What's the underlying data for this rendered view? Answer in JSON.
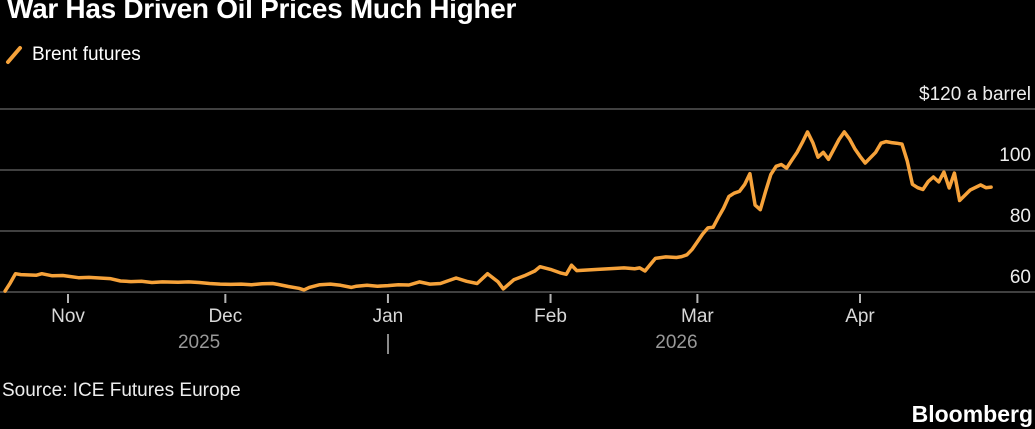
{
  "header": {
    "title": "War Has Driven Oil Prices Much Higher"
  },
  "legend": {
    "series_label": "Brent futures",
    "marker": "diagonal-stroke-icon"
  },
  "footer": {
    "source": "Source: ICE Futures Europe",
    "brand": "Bloomberg"
  },
  "colors": {
    "background": "#000000",
    "line": "#f6a23a",
    "grid": "#555555",
    "tick": "#b5b5b5",
    "y_label": "#ededed",
    "month_label": "#d8d8d8",
    "year_label": "#989898",
    "title": "#ffffff"
  },
  "chart_data": {
    "type": "line",
    "title": "War Has Driven Oil Prices Much Higher",
    "unit": "$ a barrel",
    "legend_position": "top-left",
    "grid": "horizontal-only",
    "y_axis": {
      "side": "right",
      "range": [
        60,
        120
      ],
      "ticks": [
        {
          "value": 120,
          "label": "$120 a barrel"
        },
        {
          "value": 100,
          "label": "100"
        },
        {
          "value": 80,
          "label": "80"
        },
        {
          "value": 60,
          "label": "60"
        }
      ]
    },
    "x_axis": {
      "ticks": [
        {
          "date": "2025-11-01",
          "label": "Nov"
        },
        {
          "date": "2025-12-01",
          "label": "Dec"
        },
        {
          "date": "2026-01-01",
          "label": "Jan"
        },
        {
          "date": "2026-02-01",
          "label": "Feb"
        },
        {
          "date": "2026-03-01",
          "label": "Mar"
        },
        {
          "date": "2026-04-01",
          "label": "Apr"
        }
      ],
      "year_labels": [
        {
          "label": "2025",
          "center_date": "2025-11-26"
        },
        {
          "label": "2026",
          "center_date": "2026-02-25"
        }
      ],
      "year_divider_date": "2026-01-01"
    },
    "series": [
      {
        "name": "Brent futures",
        "color": "#f6a23a",
        "points": [
          [
            "2025-10-20",
            60.3
          ],
          [
            "2025-10-21",
            63.0
          ],
          [
            "2025-10-22",
            66.0
          ],
          [
            "2025-10-23",
            65.7
          ],
          [
            "2025-10-26",
            65.5
          ],
          [
            "2025-10-27",
            66.0
          ],
          [
            "2025-10-29",
            65.3
          ],
          [
            "2025-10-31",
            65.4
          ],
          [
            "2025-11-03",
            64.7
          ],
          [
            "2025-11-05",
            64.8
          ],
          [
            "2025-11-07",
            64.6
          ],
          [
            "2025-11-09",
            64.4
          ],
          [
            "2025-11-11",
            63.6
          ],
          [
            "2025-11-13",
            63.4
          ],
          [
            "2025-11-15",
            63.5
          ],
          [
            "2025-11-17",
            63.1
          ],
          [
            "2025-11-19",
            63.3
          ],
          [
            "2025-11-22",
            63.2
          ],
          [
            "2025-11-24",
            63.3
          ],
          [
            "2025-11-26",
            63.1
          ],
          [
            "2025-11-28",
            62.8
          ],
          [
            "2025-11-30",
            62.6
          ],
          [
            "2025-12-02",
            62.5
          ],
          [
            "2025-12-04",
            62.6
          ],
          [
            "2025-12-06",
            62.4
          ],
          [
            "2025-12-08",
            62.7
          ],
          [
            "2025-12-10",
            62.8
          ],
          [
            "2025-12-11",
            62.5
          ],
          [
            "2025-12-13",
            61.8
          ],
          [
            "2025-12-15",
            61.2
          ],
          [
            "2025-12-16",
            60.7
          ],
          [
            "2025-12-17",
            61.5
          ],
          [
            "2025-12-19",
            62.4
          ],
          [
            "2025-12-21",
            62.6
          ],
          [
            "2025-12-23",
            62.2
          ],
          [
            "2025-12-25",
            61.5
          ],
          [
            "2025-12-26",
            61.9
          ],
          [
            "2025-12-28",
            62.2
          ],
          [
            "2025-12-30",
            61.9
          ],
          [
            "2026-01-01",
            62.1
          ],
          [
            "2026-01-03",
            62.4
          ],
          [
            "2026-01-05",
            62.3
          ],
          [
            "2026-01-07",
            63.3
          ],
          [
            "2026-01-09",
            62.6
          ],
          [
            "2026-01-11",
            62.8
          ],
          [
            "2026-01-14",
            64.6
          ],
          [
            "2026-01-16",
            63.5
          ],
          [
            "2026-01-18",
            62.8
          ],
          [
            "2026-01-20",
            66.0
          ],
          [
            "2026-01-22",
            63.3
          ],
          [
            "2026-01-23",
            61.0
          ],
          [
            "2026-01-25",
            64.0
          ],
          [
            "2026-01-27",
            65.3
          ],
          [
            "2026-01-29",
            66.9
          ],
          [
            "2026-01-30",
            68.3
          ],
          [
            "2026-02-01",
            67.4
          ],
          [
            "2026-02-03",
            66.2
          ],
          [
            "2026-02-04",
            65.8
          ],
          [
            "2026-02-05",
            68.8
          ],
          [
            "2026-02-06",
            67.0
          ],
          [
            "2026-02-08",
            67.2
          ],
          [
            "2026-02-10",
            67.4
          ],
          [
            "2026-02-13",
            67.7
          ],
          [
            "2026-02-15",
            67.9
          ],
          [
            "2026-02-17",
            67.6
          ],
          [
            "2026-02-18",
            67.9
          ],
          [
            "2026-02-19",
            66.9
          ],
          [
            "2026-02-20",
            69.0
          ],
          [
            "2026-02-21",
            71.0
          ],
          [
            "2026-02-23",
            71.5
          ],
          [
            "2026-02-25",
            71.3
          ],
          [
            "2026-02-26",
            71.6
          ],
          [
            "2026-02-27",
            72.2
          ],
          [
            "2026-02-28",
            74.0
          ],
          [
            "2026-03-01",
            76.5
          ],
          [
            "2026-03-02",
            79.0
          ],
          [
            "2026-03-03",
            81.0
          ],
          [
            "2026-03-04",
            81.2
          ],
          [
            "2026-03-05",
            84.5
          ],
          [
            "2026-03-06",
            87.5
          ],
          [
            "2026-03-07",
            91.3
          ],
          [
            "2026-03-08",
            92.4
          ],
          [
            "2026-03-09",
            93.0
          ],
          [
            "2026-03-10",
            95.2
          ],
          [
            "2026-03-11",
            98.8
          ],
          [
            "2026-03-12",
            88.5
          ],
          [
            "2026-03-13",
            87.0
          ],
          [
            "2026-03-14",
            93.0
          ],
          [
            "2026-03-15",
            98.5
          ],
          [
            "2026-03-16",
            101.2
          ],
          [
            "2026-03-17",
            101.8
          ],
          [
            "2026-03-18",
            100.6
          ],
          [
            "2026-03-19",
            103.2
          ],
          [
            "2026-03-20",
            105.8
          ],
          [
            "2026-03-21",
            109.0
          ],
          [
            "2026-03-22",
            112.5
          ],
          [
            "2026-03-23",
            109.0
          ],
          [
            "2026-03-24",
            104.2
          ],
          [
            "2026-03-25",
            105.8
          ],
          [
            "2026-03-26",
            103.5
          ],
          [
            "2026-03-27",
            106.8
          ],
          [
            "2026-03-28",
            110.0
          ],
          [
            "2026-03-29",
            112.5
          ],
          [
            "2026-03-30",
            110.2
          ],
          [
            "2026-03-31",
            107.0
          ],
          [
            "2026-04-01",
            104.5
          ],
          [
            "2026-04-02",
            102.3
          ],
          [
            "2026-04-04",
            105.8
          ],
          [
            "2026-04-05",
            108.8
          ],
          [
            "2026-04-06",
            109.3
          ],
          [
            "2026-04-07",
            109.0
          ],
          [
            "2026-04-08",
            108.8
          ],
          [
            "2026-04-09",
            108.5
          ],
          [
            "2026-04-10",
            103.0
          ],
          [
            "2026-04-11",
            95.3
          ],
          [
            "2026-04-12",
            94.2
          ],
          [
            "2026-04-13",
            93.6
          ],
          [
            "2026-04-14",
            96.2
          ],
          [
            "2026-04-15",
            97.7
          ],
          [
            "2026-04-16",
            96.1
          ],
          [
            "2026-04-17",
            99.3
          ],
          [
            "2026-04-18",
            94.1
          ],
          [
            "2026-04-19",
            99.0
          ],
          [
            "2026-04-20",
            90.0
          ],
          [
            "2026-04-22",
            93.4
          ],
          [
            "2026-04-24",
            95.1
          ],
          [
            "2026-04-25",
            94.2
          ],
          [
            "2026-04-26",
            94.4
          ]
        ]
      }
    ]
  }
}
